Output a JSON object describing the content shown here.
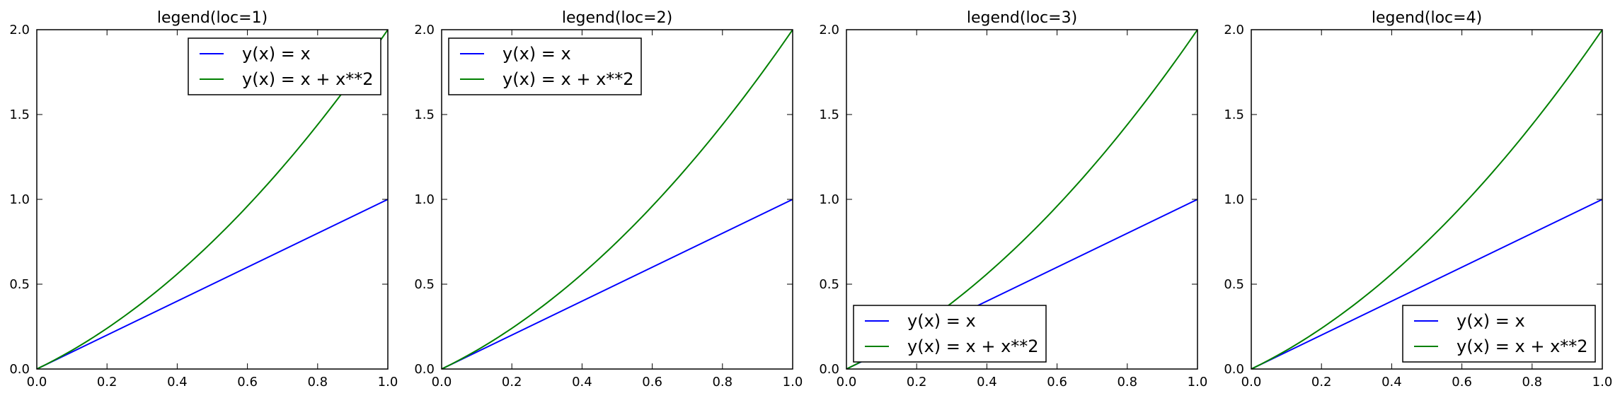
{
  "chart_data": [
    {
      "type": "line",
      "title": "legend(loc=1)",
      "legend_loc": "upper right",
      "xlim": [
        0.0,
        1.0
      ],
      "ylim": [
        0.0,
        2.0
      ],
      "xticks": [
        "0.0",
        "0.2",
        "0.4",
        "0.6",
        "0.8",
        "1.0"
      ],
      "yticks": [
        "0.0",
        "0.5",
        "1.0",
        "1.5",
        "2.0"
      ],
      "x": [
        0.0,
        0.1,
        0.2,
        0.3,
        0.4,
        0.5,
        0.6,
        0.7,
        0.8,
        0.9,
        1.0
      ],
      "series": [
        {
          "name": "y(x) = x",
          "color": "#0000ff",
          "values": [
            0.0,
            0.1,
            0.2,
            0.3,
            0.4,
            0.5,
            0.6,
            0.7,
            0.8,
            0.9,
            1.0
          ]
        },
        {
          "name": "y(x) = x + x**2",
          "color": "#008000",
          "values": [
            0.0,
            0.11,
            0.24,
            0.39,
            0.56,
            0.75,
            0.96,
            1.19,
            1.44,
            1.71,
            2.0
          ]
        }
      ]
    },
    {
      "type": "line",
      "title": "legend(loc=2)",
      "legend_loc": "upper left",
      "xlim": [
        0.0,
        1.0
      ],
      "ylim": [
        0.0,
        2.0
      ],
      "xticks": [
        "0.0",
        "0.2",
        "0.4",
        "0.6",
        "0.8",
        "1.0"
      ],
      "yticks": [
        "0.0",
        "0.5",
        "1.0",
        "1.5",
        "2.0"
      ],
      "x": [
        0.0,
        0.1,
        0.2,
        0.3,
        0.4,
        0.5,
        0.6,
        0.7,
        0.8,
        0.9,
        1.0
      ],
      "series": [
        {
          "name": "y(x) = x",
          "color": "#0000ff",
          "values": [
            0.0,
            0.1,
            0.2,
            0.3,
            0.4,
            0.5,
            0.6,
            0.7,
            0.8,
            0.9,
            1.0
          ]
        },
        {
          "name": "y(x) = x + x**2",
          "color": "#008000",
          "values": [
            0.0,
            0.11,
            0.24,
            0.39,
            0.56,
            0.75,
            0.96,
            1.19,
            1.44,
            1.71,
            2.0
          ]
        }
      ]
    },
    {
      "type": "line",
      "title": "legend(loc=3)",
      "legend_loc": "lower left",
      "xlim": [
        0.0,
        1.0
      ],
      "ylim": [
        0.0,
        2.0
      ],
      "xticks": [
        "0.0",
        "0.2",
        "0.4",
        "0.6",
        "0.8",
        "1.0"
      ],
      "yticks": [
        "0.0",
        "0.5",
        "1.0",
        "1.5",
        "2.0"
      ],
      "x": [
        0.0,
        0.1,
        0.2,
        0.3,
        0.4,
        0.5,
        0.6,
        0.7,
        0.8,
        0.9,
        1.0
      ],
      "series": [
        {
          "name": "y(x) = x",
          "color": "#0000ff",
          "values": [
            0.0,
            0.1,
            0.2,
            0.3,
            0.4,
            0.5,
            0.6,
            0.7,
            0.8,
            0.9,
            1.0
          ]
        },
        {
          "name": "y(x) = x + x**2",
          "color": "#008000",
          "values": [
            0.0,
            0.11,
            0.24,
            0.39,
            0.56,
            0.75,
            0.96,
            1.19,
            1.44,
            1.71,
            2.0
          ]
        }
      ]
    },
    {
      "type": "line",
      "title": "legend(loc=4)",
      "legend_loc": "lower right",
      "xlim": [
        0.0,
        1.0
      ],
      "ylim": [
        0.0,
        2.0
      ],
      "xticks": [
        "0.0",
        "0.2",
        "0.4",
        "0.6",
        "0.8",
        "1.0"
      ],
      "yticks": [
        "0.0",
        "0.5",
        "1.0",
        "1.5",
        "2.0"
      ],
      "x": [
        0.0,
        0.1,
        0.2,
        0.3,
        0.4,
        0.5,
        0.6,
        0.7,
        0.8,
        0.9,
        1.0
      ],
      "series": [
        {
          "name": "y(x) = x",
          "color": "#0000ff",
          "values": [
            0.0,
            0.1,
            0.2,
            0.3,
            0.4,
            0.5,
            0.6,
            0.7,
            0.8,
            0.9,
            1.0
          ]
        },
        {
          "name": "y(x) = x + x**2",
          "color": "#008000",
          "values": [
            0.0,
            0.11,
            0.24,
            0.39,
            0.56,
            0.75,
            0.96,
            1.19,
            1.44,
            1.71,
            2.0
          ]
        }
      ]
    }
  ]
}
